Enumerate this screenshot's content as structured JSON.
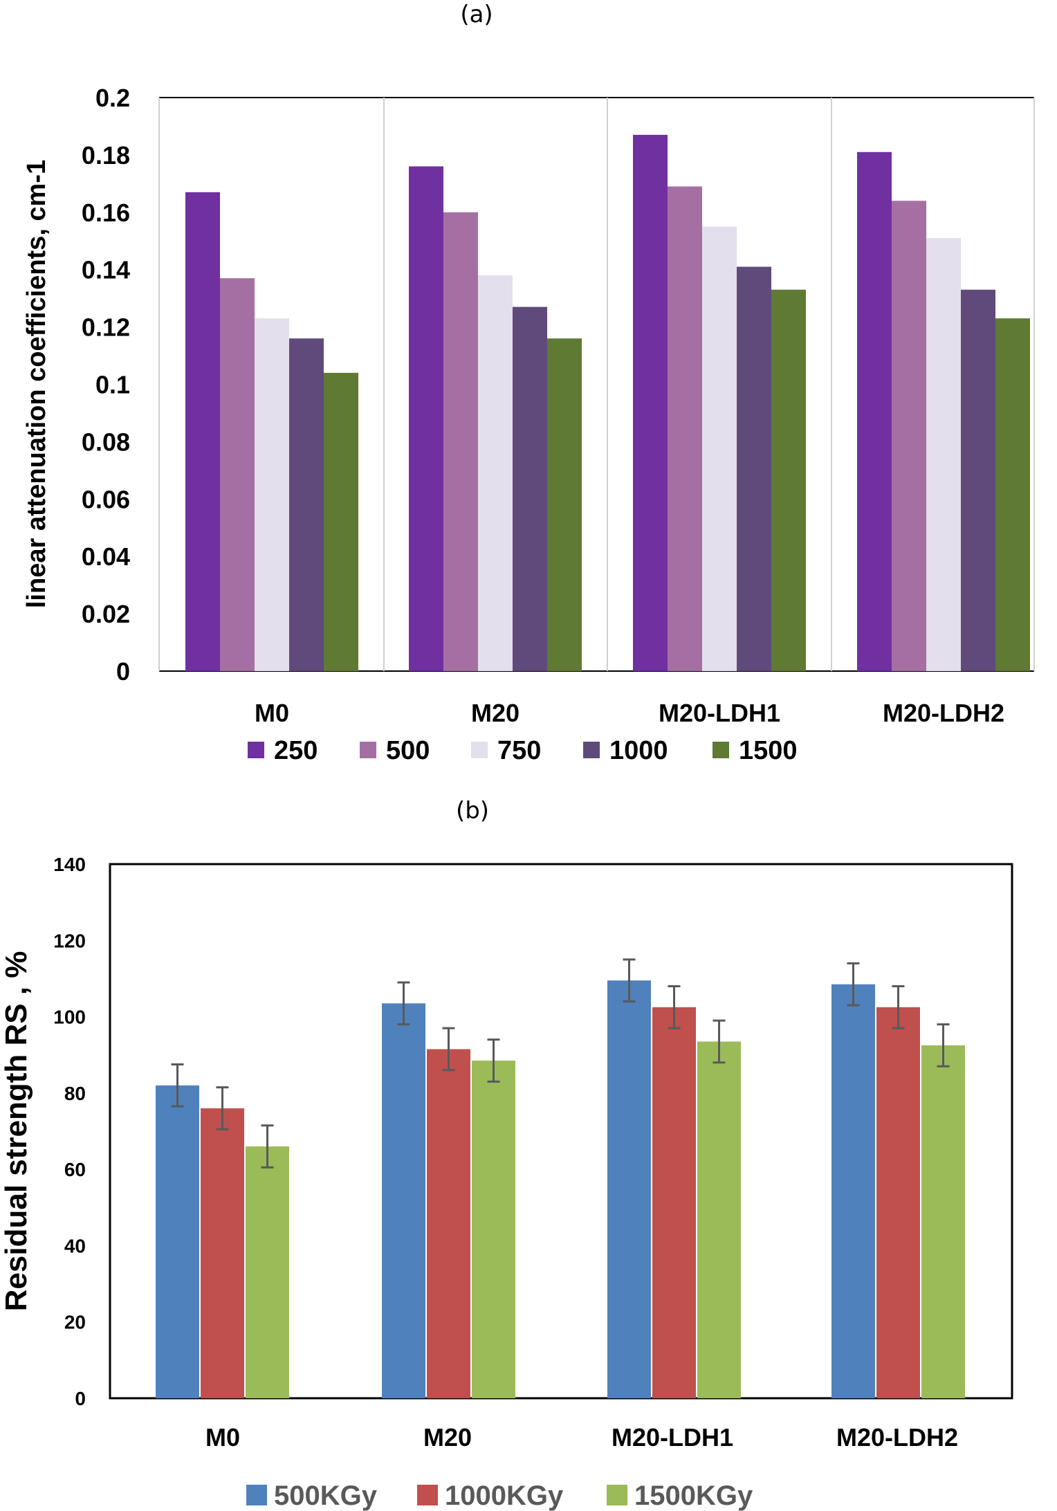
{
  "chart_data": [
    {
      "type": "bar",
      "panel_label": "(a)",
      "title": "",
      "xlabel": "",
      "ylabel": "linear attenuation coefficients, cm-1",
      "ylim": [
        0,
        0.2
      ],
      "yticks": [
        "0",
        "0.02",
        "0.04",
        "0.06",
        "0.08",
        "0.1",
        "0.12",
        "0.14",
        "0.16",
        "0.18",
        "0.2"
      ],
      "categories": [
        "M0",
        "M20",
        "M20-LDH1",
        "M20-LDH2"
      ],
      "legend_position": "bottom",
      "series": [
        {
          "name": "250",
          "color": "#7030a0",
          "values": [
            0.167,
            0.176,
            0.187,
            0.181
          ]
        },
        {
          "name": "500",
          "color": "#a66fa3",
          "values": [
            0.137,
            0.16,
            0.169,
            0.164
          ]
        },
        {
          "name": "750",
          "color": "#e4dfec",
          "values": [
            0.123,
            0.138,
            0.155,
            0.151
          ]
        },
        {
          "name": "1000",
          "color": "#604a7b",
          "values": [
            0.116,
            0.127,
            0.141,
            0.133
          ]
        },
        {
          "name": "1500",
          "color": "#5e7a33",
          "values": [
            0.104,
            0.116,
            0.133,
            0.123
          ]
        }
      ]
    },
    {
      "type": "bar",
      "panel_label": "(b)",
      "title": "",
      "xlabel": "",
      "ylabel": "Residual strength RS , %",
      "ylim": [
        0,
        140
      ],
      "yticks": [
        "0",
        "20",
        "40",
        "60",
        "80",
        "100",
        "120",
        "140"
      ],
      "categories": [
        "M0",
        "M20",
        "M20-LDH1",
        "M20-LDH2"
      ],
      "legend_position": "bottom",
      "error_bars": true,
      "series": [
        {
          "name": "500KGy",
          "color": "#4f81bd",
          "values": [
            82,
            103.5,
            109.5,
            108.5
          ],
          "errors": [
            5.5,
            5.5,
            5.5,
            5.5
          ]
        },
        {
          "name": "1000KGy",
          "color": "#c0504d",
          "values": [
            76,
            91.5,
            102.5,
            102.5
          ],
          "errors": [
            5.5,
            5.5,
            5.5,
            5.5
          ]
        },
        {
          "name": "1500KGy",
          "color": "#9bbb59",
          "values": [
            66,
            88.5,
            93.5,
            92.5
          ],
          "errors": [
            5.5,
            5.5,
            5.5,
            5.5
          ]
        }
      ]
    }
  ]
}
